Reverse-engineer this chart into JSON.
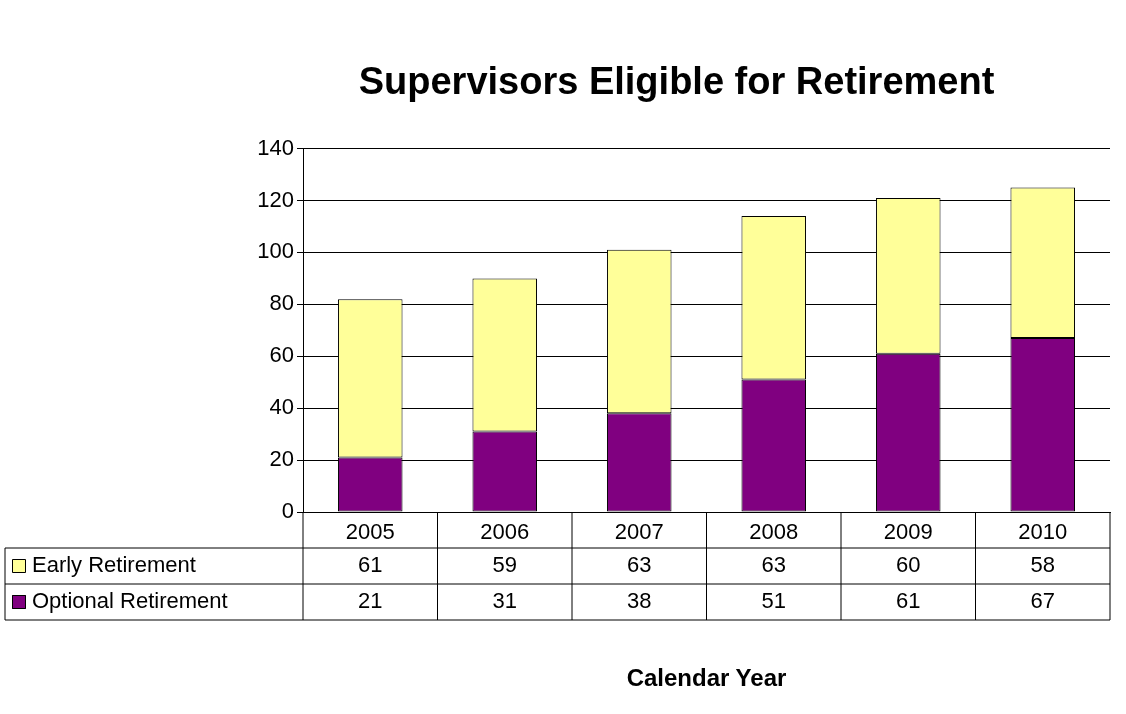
{
  "chart_data": {
    "type": "bar",
    "title": "Supervisors Eligible for Retirement",
    "xlabel": "Calendar Year",
    "categories": [
      "2005",
      "2006",
      "2007",
      "2008",
      "2009",
      "2010"
    ],
    "series": [
      {
        "name": "Optional Retirement",
        "color": "#800080",
        "values": [
          21,
          31,
          38,
          51,
          61,
          67
        ]
      },
      {
        "name": "Early Retirement",
        "color": "#ffff99",
        "values": [
          61,
          59,
          63,
          63,
          60,
          58
        ]
      }
    ],
    "stacked": true,
    "ylim": [
      0,
      140
    ],
    "yticks": [
      0,
      20,
      40,
      60,
      80,
      100,
      120,
      140
    ],
    "grid": "y",
    "legend": "bottom",
    "data_labels": true
  }
}
